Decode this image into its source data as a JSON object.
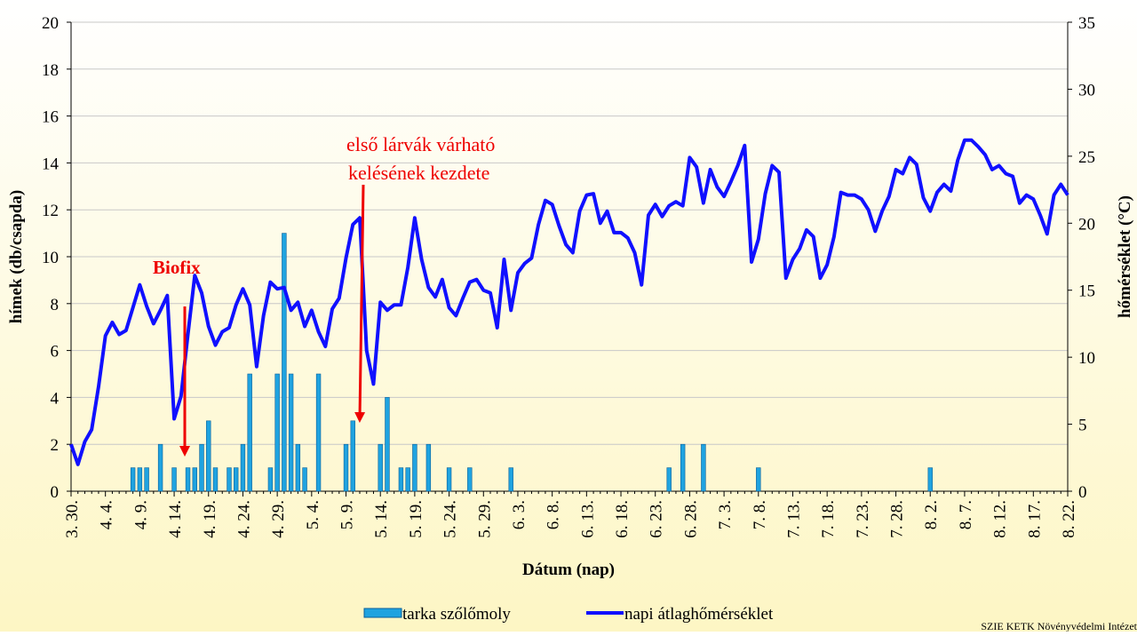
{
  "chart_data": {
    "type": "bar_line",
    "xlabel": "Dátum (nap)",
    "ylabel": "hímek (db/csapda)",
    "y2label": "hőmérséklet (°C)",
    "annotations": [
      "Biofix",
      "első lárvák várható",
      "kelésének kezdete"
    ],
    "source": "SZIE KETK Növényvédelmi Intézet",
    "categories": [
      "3. 30.",
      null,
      null,
      null,
      null,
      "4. 4.",
      null,
      null,
      null,
      null,
      "4. 9.",
      null,
      null,
      null,
      null,
      "4. 14.",
      null,
      null,
      null,
      null,
      "4. 19.",
      null,
      null,
      null,
      null,
      "4. 24.",
      null,
      null,
      null,
      null,
      "4. 29.",
      null,
      null,
      null,
      null,
      "5. 4.",
      null,
      null,
      null,
      null,
      "5. 9.",
      null,
      null,
      null,
      null,
      "5. 14.",
      null,
      null,
      null,
      null,
      "5. 19.",
      null,
      null,
      null,
      null,
      "5. 24.",
      null,
      null,
      null,
      null,
      "5. 29.",
      null,
      null,
      null,
      null,
      "6. 3.",
      null,
      null,
      null,
      null,
      "6. 8.",
      null,
      null,
      null,
      null,
      "6. 13.",
      null,
      null,
      null,
      null,
      "6. 18.",
      null,
      null,
      null,
      null,
      "6. 23.",
      null,
      null,
      null,
      null,
      "6. 28.",
      null,
      null,
      null,
      null,
      "7. 3.",
      null,
      null,
      null,
      null,
      "7. 8.",
      null,
      null,
      null,
      null,
      "7. 13.",
      null,
      null,
      null,
      null,
      "7. 18.",
      null,
      null,
      null,
      null,
      "7. 23.",
      null,
      null,
      null,
      null,
      "7. 28.",
      null,
      null,
      null,
      null,
      "8. 2.",
      null,
      null,
      null,
      null,
      "8. 7.",
      null,
      null,
      null,
      null,
      "8. 12.",
      null,
      null,
      null,
      null,
      "8. 17.",
      null,
      null,
      null,
      null,
      "8. 22."
    ],
    "series": [
      {
        "name": "tarka szőlőmoly",
        "type": "bar",
        "color": "#1fa3e0",
        "values": [
          0,
          0,
          0,
          0,
          0,
          0,
          0,
          0,
          0,
          1,
          1,
          1,
          0,
          2,
          0,
          1,
          0,
          1,
          1,
          2,
          3,
          1,
          0,
          1,
          1,
          2,
          5,
          0,
          0,
          1,
          5,
          11,
          5,
          2,
          1,
          0,
          5,
          0,
          0,
          0,
          2,
          3,
          0,
          0,
          0,
          2,
          4,
          0,
          1,
          1,
          2,
          0,
          2,
          0,
          0,
          1,
          0,
          0,
          1,
          0,
          0,
          0,
          0,
          0,
          1,
          0,
          0,
          0,
          0,
          0,
          0,
          0,
          0,
          0,
          0,
          0,
          0,
          0,
          0,
          0,
          0,
          0,
          0,
          0,
          0,
          0,
          0,
          1,
          0,
          2,
          0,
          0,
          2,
          0,
          0,
          0,
          0,
          0,
          0,
          0,
          1,
          0,
          0,
          0,
          0,
          0,
          0,
          0,
          0,
          0,
          0,
          0,
          0,
          0,
          0,
          0,
          0,
          0,
          0,
          0,
          0,
          0,
          0,
          0,
          0,
          1,
          0,
          0,
          0,
          0,
          0,
          0,
          0,
          0,
          0,
          0,
          0,
          0,
          0,
          0,
          0,
          0,
          0,
          0,
          0,
          0
        ]
      },
      {
        "name": "napi átlaghőmérséklet",
        "type": "line",
        "axis": "y2",
        "color": "#1010ff",
        "values": [
          3.5,
          2.0,
          3.7,
          4.6,
          7.8,
          11.6,
          12.6,
          11.7,
          12.0,
          13.7,
          15.4,
          13.8,
          12.5,
          13.5,
          14.6,
          5.4,
          7.1,
          11.7,
          16.1,
          14.8,
          12.3,
          10.9,
          11.9,
          12.2,
          13.9,
          15.1,
          13.9,
          9.3,
          13.1,
          15.6,
          15.1,
          15.2,
          13.5,
          14.1,
          12.3,
          13.5,
          11.9,
          10.8,
          13.6,
          14.4,
          17.4,
          19.9,
          20.4,
          10.5,
          8.0,
          14.1,
          13.5,
          13.9,
          13.9,
          16.7,
          20.4,
          17.3,
          15.2,
          14.5,
          15.8,
          13.7,
          13.1,
          14.4,
          15.6,
          15.8,
          15.0,
          14.8,
          12.2,
          17.3,
          13.5,
          16.3,
          17.0,
          17.4,
          19.9,
          21.7,
          21.4,
          19.8,
          18.4,
          17.8,
          20.9,
          22.1,
          22.2,
          20.0,
          20.9,
          19.3,
          19.3,
          18.9,
          17.8,
          15.4,
          20.6,
          21.4,
          20.5,
          21.3,
          21.6,
          21.3,
          24.9,
          24.2,
          21.5,
          24.0,
          22.7,
          22.0,
          23.1,
          24.3,
          25.8,
          17.1,
          18.8,
          22.2,
          24.3,
          23.8,
          15.9,
          17.3,
          18.1,
          19.5,
          19.0,
          15.9,
          16.9,
          19.0,
          22.3,
          22.1,
          22.1,
          21.8,
          21.0,
          19.4,
          20.9,
          22.0,
          24.0,
          23.7,
          24.9,
          24.4,
          21.9,
          20.9,
          22.3,
          22.9,
          22.4,
          24.7,
          26.2,
          26.2,
          25.7,
          25.1,
          24.0,
          24.3,
          23.7,
          23.5,
          21.5,
          22.1,
          21.8,
          20.6,
          19.2,
          22.1,
          22.9,
          22.1
        ]
      }
    ],
    "ylim": [
      0,
      20
    ],
    "yticks": [
      0,
      2,
      4,
      6,
      8,
      10,
      12,
      14,
      16,
      18,
      20
    ],
    "y2lim": [
      0,
      35
    ],
    "y2ticks": [
      0,
      5,
      10,
      15,
      20,
      25,
      30,
      35
    ],
    "grid": true,
    "legend": "bottom"
  }
}
